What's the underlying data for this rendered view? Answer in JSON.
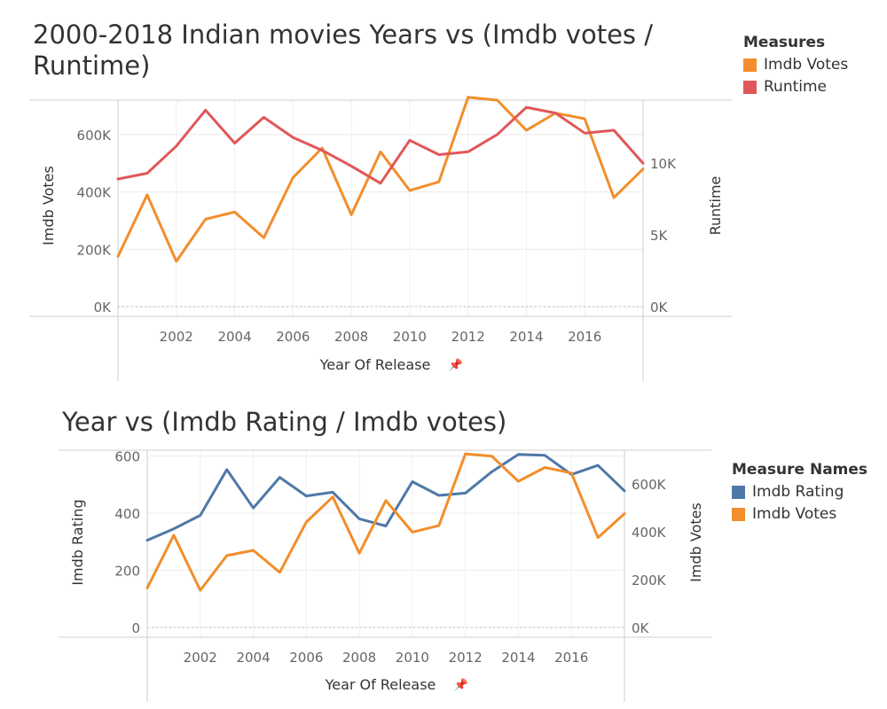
{
  "chart_data": [
    {
      "type": "line",
      "title": "2000-2018 Indian movies Years vs (Imdb votes / Runtime)",
      "xlabel": "Year Of Release",
      "ylabel_left": "Imdb Votes",
      "ylabel_right": "Runtime",
      "x": [
        2000,
        2001,
        2002,
        2003,
        2004,
        2005,
        2006,
        2007,
        2008,
        2009,
        2010,
        2011,
        2012,
        2013,
        2014,
        2015,
        2016,
        2017,
        2018
      ],
      "x_ticks": [
        "2002",
        "2004",
        "2006",
        "2008",
        "2010",
        "2012",
        "2014",
        "2016"
      ],
      "y_left_ticks": [
        "0K",
        "200K",
        "400K",
        "600K"
      ],
      "y_right_ticks": [
        "0K",
        "5K",
        "10K"
      ],
      "ylim_left": [
        0,
        720000
      ],
      "ylim_right": [
        0,
        14400
      ],
      "legend_title": "Measures",
      "legend_position": "top-right",
      "grid": true,
      "series": [
        {
          "name": "Imdb Votes",
          "axis": "left",
          "color": "#F28E2B",
          "values": [
            175000,
            390000,
            158000,
            305000,
            330000,
            240000,
            450000,
            553000,
            320000,
            540000,
            405000,
            435000,
            730000,
            720000,
            615000,
            675000,
            655000,
            380000,
            480000
          ]
        },
        {
          "name": "Runtime",
          "axis": "right",
          "color": "#E15759",
          "values": [
            8900,
            9300,
            11200,
            13700,
            11400,
            13200,
            11800,
            10900,
            9800,
            8600,
            11600,
            10600,
            10800,
            12000,
            13900,
            13500,
            12100,
            12300,
            10000
          ]
        }
      ]
    },
    {
      "type": "line",
      "title": "Year vs (Imdb Rating / Imdb votes)",
      "xlabel": "Year Of Release",
      "ylabel_left": "Imdb Rating",
      "ylabel_right": "Imdb Votes",
      "x": [
        2000,
        2001,
        2002,
        2003,
        2004,
        2005,
        2006,
        2007,
        2008,
        2009,
        2010,
        2011,
        2012,
        2013,
        2014,
        2015,
        2016,
        2017,
        2018
      ],
      "x_ticks": [
        "2002",
        "2004",
        "2006",
        "2008",
        "2010",
        "2012",
        "2014",
        "2016"
      ],
      "y_left_ticks": [
        "0",
        "200",
        "400",
        "600"
      ],
      "y_right_ticks": [
        "0K",
        "200K",
        "400K",
        "600K"
      ],
      "ylim_left": [
        0,
        620
      ],
      "ylim_right": [
        0,
        740000
      ],
      "legend_title": "Measure Names",
      "legend_position": "right",
      "grid": true,
      "series": [
        {
          "name": "Imdb Rating",
          "axis": "left",
          "color": "#4E79A7",
          "values": [
            305,
            345,
            392,
            552,
            418,
            525,
            460,
            473,
            380,
            355,
            510,
            462,
            470,
            545,
            605,
            602,
            535,
            567,
            478
          ]
        },
        {
          "name": "Imdb Votes",
          "axis": "right",
          "color": "#F28E2B",
          "values": [
            165000,
            385000,
            155000,
            300000,
            322000,
            230000,
            440000,
            545000,
            310000,
            530000,
            398000,
            425000,
            725000,
            715000,
            610000,
            668000,
            645000,
            375000,
            475000
          ]
        }
      ]
    }
  ]
}
